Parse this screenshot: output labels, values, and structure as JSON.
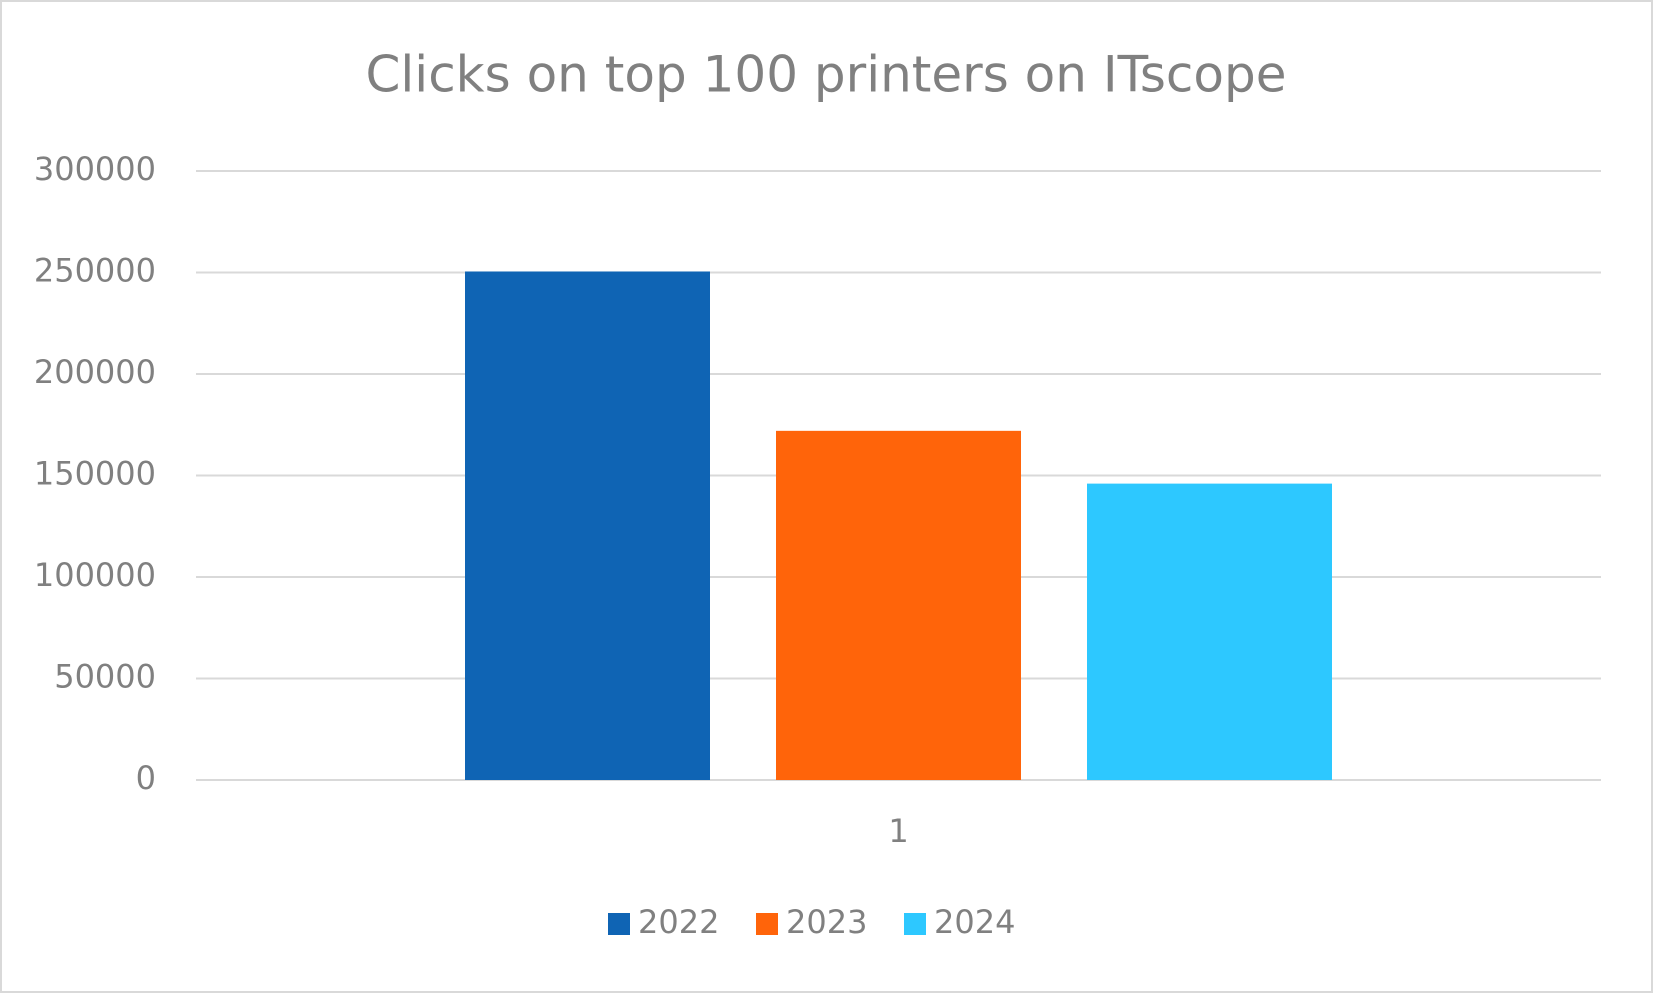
{
  "chart_data": {
    "type": "bar",
    "title": "Clicks on top 100 printers on ITscope",
    "categories": [
      "1"
    ],
    "series": [
      {
        "name": "2022",
        "color": "#0f64b4",
        "values": [
          250500
        ]
      },
      {
        "name": "2023",
        "color": "#ff640a",
        "values": [
          172000
        ]
      },
      {
        "name": "2024",
        "color": "#2dc8ff",
        "values": [
          146000
        ]
      }
    ],
    "ylim": [
      0,
      300000
    ],
    "yticks": [
      0,
      50000,
      100000,
      150000,
      200000,
      250000,
      300000
    ],
    "grid": true,
    "legend": "bottom"
  }
}
